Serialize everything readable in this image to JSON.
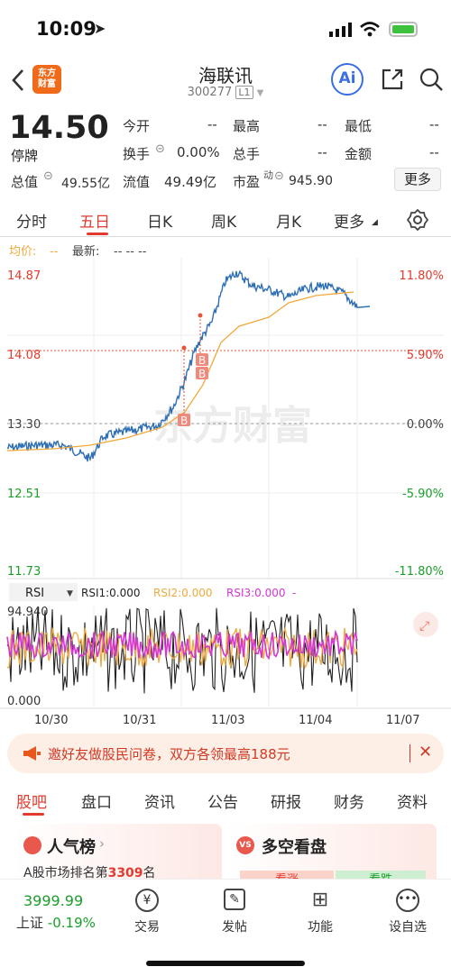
{
  "status": {
    "time": "10:09"
  },
  "nav": {
    "title": "海联讯",
    "code": "300277",
    "level": "L1",
    "logo_line1": "东方",
    "logo_line2": "财富",
    "ai_label": "Ai"
  },
  "quote": {
    "price": "14.50",
    "status": "停牌",
    "open_label": "今开",
    "open_val": "--",
    "high_label": "最高",
    "high_val": "--",
    "low_label": "最低",
    "low_val": "--",
    "turnover_label": "换手",
    "turnover_val": "0.00%",
    "volume_label": "总手",
    "volume_val": "--",
    "amount_label": "金额",
    "amount_val": "--",
    "mcap_label": "总值",
    "mcap_val": "49.55亿",
    "float_label": "流值",
    "float_val": "49.49亿",
    "pe_label": "市盈",
    "pe_sup": "动",
    "pe_val": "945.90",
    "more_label": "更多"
  },
  "chart_tabs": [
    "分时",
    "五日",
    "日K",
    "周K",
    "月K",
    "更多"
  ],
  "chart_tab_active": "五日",
  "chart_header": {
    "avg_label": "均价:",
    "avg_val": "--",
    "latest_label": "最新:",
    "latest_val": "-- -- --"
  },
  "y_left": [
    "14.87",
    "14.08",
    "13.30",
    "12.51",
    "11.73"
  ],
  "y_right": [
    "11.80%",
    "5.90%",
    "0.00%",
    "-5.90%",
    "-11.80%"
  ],
  "watermark": "东方财富",
  "rsi": {
    "selector": "RSI",
    "rsi1": "RSI1:0.000",
    "rsi2": "RSI2:0.000",
    "rsi3": "RSI3:0.000",
    "rsi3_suffix": "-",
    "top": "94.940",
    "bottom": "0.000"
  },
  "dates": [
    "10/30",
    "10/31",
    "11/03",
    "11/04",
    "11/07"
  ],
  "chart_data": {
    "type": "line",
    "x": [
      "10/30",
      "10/31",
      "11/03",
      "11/04"
    ],
    "ylim": [
      11.73,
      14.87
    ],
    "series": [],
    "markers": [
      "B",
      "B",
      "B"
    ]
  },
  "banner": {
    "text": "邀好友做股民问卷，双方各领最高188元"
  },
  "section_tabs": [
    "股吧",
    "盘口",
    "资讯",
    "公告",
    "研报",
    "财务",
    "资料"
  ],
  "section_tab_active": "股吧",
  "cards": {
    "popular_title": "人气榜",
    "popular_sub_pre": "A股市场排名第",
    "popular_rank": "3309",
    "popular_sub_post": "名",
    "bullbear_title": "多空看盘",
    "bull": "看涨",
    "bear": "看跌"
  },
  "bottom": {
    "index_val": "3999.99",
    "index_name": "上证",
    "index_change": "-0.19%",
    "trade": "交易",
    "post": "发帖",
    "func": "功能",
    "watch": "设自选"
  },
  "colors": {
    "red": "#e23a2e",
    "green": "#1a9e2a",
    "line": "#2f6fb5",
    "avg": "#f2a93b",
    "rsi3": "#d535d0"
  }
}
